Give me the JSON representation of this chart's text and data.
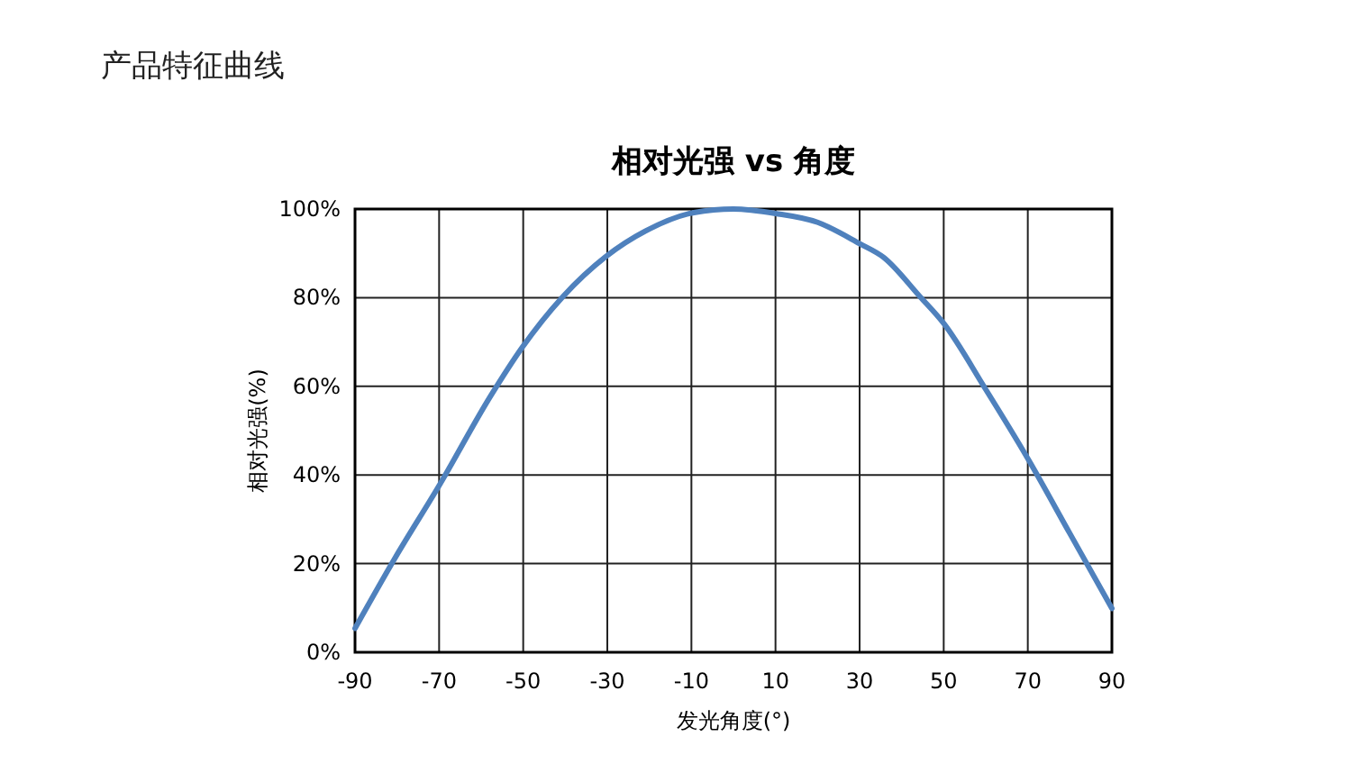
{
  "chart_data": {
    "type": "line",
    "title": "相对光强 vs 角度",
    "subtitle": "产品特征曲线",
    "xlabel": "发光角度(°)",
    "ylabel": "相对光强(%)",
    "x": [
      -90,
      -80.4,
      -70,
      -57.7,
      -50.3,
      -40.6,
      -30.3,
      -20.8,
      -9.4,
      0,
      10,
      20,
      30,
      35.7,
      44.3,
      50,
      60,
      70,
      80,
      90
    ],
    "series": [
      {
        "color": "#4f81bd",
        "values": [
          5.4,
          21.4,
          37.6,
          57.9,
          68.7,
          80.2,
          89.3,
          95.1,
          99.2,
          100,
          99,
          97,
          92.2,
          89.1,
          80.3,
          74.2,
          59.3,
          43.7,
          26.8,
          9.9
        ]
      }
    ],
    "xlim": [
      -90,
      90
    ],
    "xticks": [
      -90,
      -70,
      -50,
      -30,
      -10,
      10,
      30,
      50,
      70,
      90
    ],
    "ylim": [
      0,
      100
    ],
    "yticks": [
      {
        "value": 0,
        "label": "0%"
      },
      {
        "value": 20,
        "label": "20%"
      },
      {
        "value": 40,
        "label": "40%"
      },
      {
        "value": 60,
        "label": "60%"
      },
      {
        "value": 80,
        "label": "80%"
      },
      {
        "value": 100,
        "label": "100%"
      }
    ],
    "grid": true,
    "marker": "none",
    "line_style": "solid"
  }
}
